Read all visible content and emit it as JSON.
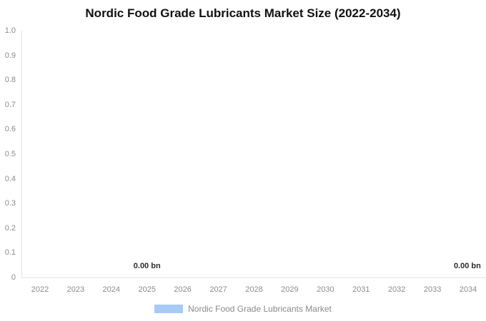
{
  "title": "Nordic Food Grade Lubricants Market Size (2022-2034)",
  "chart_data": {
    "type": "bar",
    "title": "Nordic Food Grade Lubricants Market Size (2022-2034)",
    "categories": [
      "2022",
      "2023",
      "2024",
      "2025",
      "2026",
      "2027",
      "2028",
      "2029",
      "2030",
      "2031",
      "2032",
      "2033",
      "2034"
    ],
    "series": [
      {
        "name": "Nordic Food Grade Lubricants Market",
        "color": "#a6cbf5",
        "values": [
          0,
          0,
          0,
          0,
          0,
          0,
          0,
          0,
          0,
          0,
          0,
          0,
          0
        ]
      }
    ],
    "xlabel": "",
    "ylabel": "",
    "ylim": [
      0,
      1.0
    ],
    "y_ticks": [
      "1.0",
      "0.9",
      "0.8",
      "0.7",
      "0.6",
      "0.5",
      "0.4",
      "0.3",
      "0.2",
      "0.1",
      "0"
    ],
    "grid": false,
    "legend_position": "bottom",
    "value_unit": "bn",
    "data_labels": [
      {
        "category": "2025",
        "text": "0.00 bn"
      },
      {
        "category": "2034",
        "text": "0.00 bn"
      }
    ]
  },
  "legend": {
    "swatch_color": "#a6cbf5",
    "label": "Nordic Food Grade Lubricants Market"
  },
  "colors": {
    "background": "#ffffff",
    "title": "#111111",
    "axis_line": "#e2e2e2",
    "tick_label": "#8c8c8c",
    "data_label": "#2b2b2b"
  }
}
